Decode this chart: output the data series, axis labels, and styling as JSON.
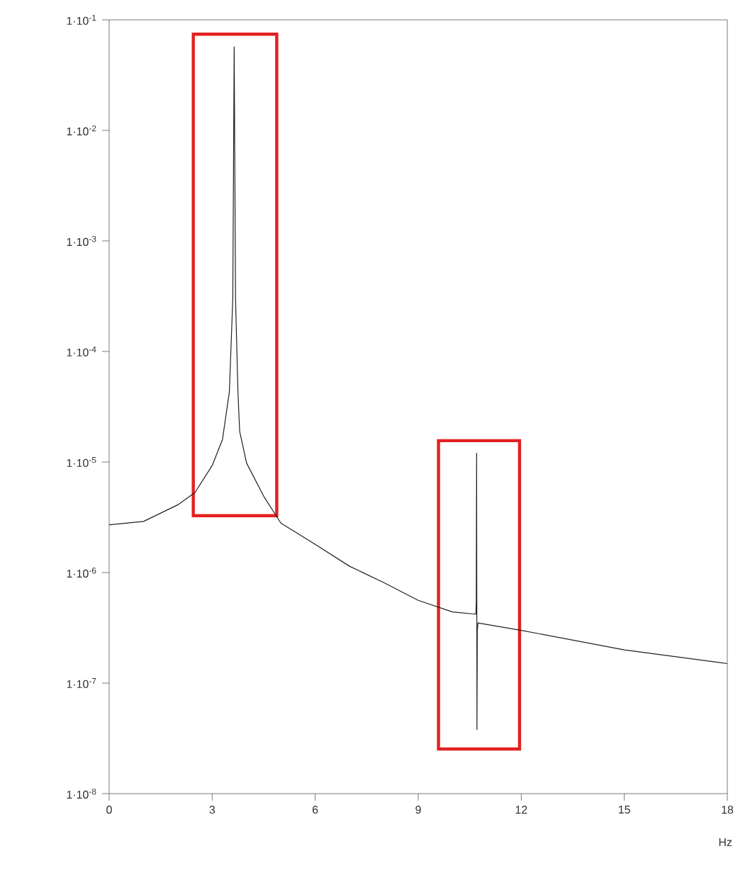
{
  "chart_data": {
    "type": "line",
    "xlabel": "Hz",
    "x": [
      0,
      1,
      2,
      2.5,
      3,
      3.3,
      3.5,
      3.6,
      3.64,
      3.68,
      3.75,
      3.8,
      4,
      4.5,
      5,
      6,
      7,
      8,
      9,
      10,
      10.68,
      10.69,
      10.7,
      10.71,
      10.72,
      10.74,
      12,
      15,
      18
    ],
    "series": [
      {
        "color": "#202020",
        "values": [
          2.7e-06,
          2.9e-06,
          4.1e-06,
          5.3e-06,
          9.3e-06,
          1.6e-05,
          4.3e-05,
          0.0003,
          0.057,
          0.0003,
          4.3e-05,
          1.9e-05,
          9.8e-06,
          4.9e-06,
          2.8e-06,
          1.8e-06,
          1.14e-06,
          8.1e-07,
          5.6e-07,
          4.4e-07,
          4.2e-07,
          5.5e-07,
          1.2e-05,
          3.8e-08,
          3e-07,
          3.5e-07,
          3e-07,
          2e-07,
          1.5e-07
        ]
      }
    ],
    "log": "y",
    "xlim": [
      0,
      18
    ],
    "ylim": [
      1e-08,
      0.1
    ],
    "xticks": [
      0,
      3,
      6,
      9,
      12,
      15,
      18
    ],
    "yticks": [
      {
        "value": 1e-08,
        "label": "1·10$^{-8}$"
      },
      {
        "value": 1e-07,
        "label": "1·10$^{-7}$"
      },
      {
        "value": 1e-06,
        "label": "1·10$^{-6}$"
      },
      {
        "value": 1e-05,
        "label": "1·10$^{-5}$"
      },
      {
        "value": 0.0001,
        "label": "1·10$^{-4}$"
      },
      {
        "value": 0.001,
        "label": "1·10$^{-3}$"
      },
      {
        "value": 0.01,
        "label": "1·10$^{-2}$"
      },
      {
        "value": 0.1,
        "label": "1·10$^{-1}$"
      }
    ],
    "bands": [
      {
        "axis": "x",
        "from": 2.45,
        "to": 4.88,
        "color": "#e32020"
      },
      {
        "axis": "x",
        "from": 9.59,
        "to": 11.95,
        "color": "#e32020"
      }
    ],
    "grid": false
  }
}
